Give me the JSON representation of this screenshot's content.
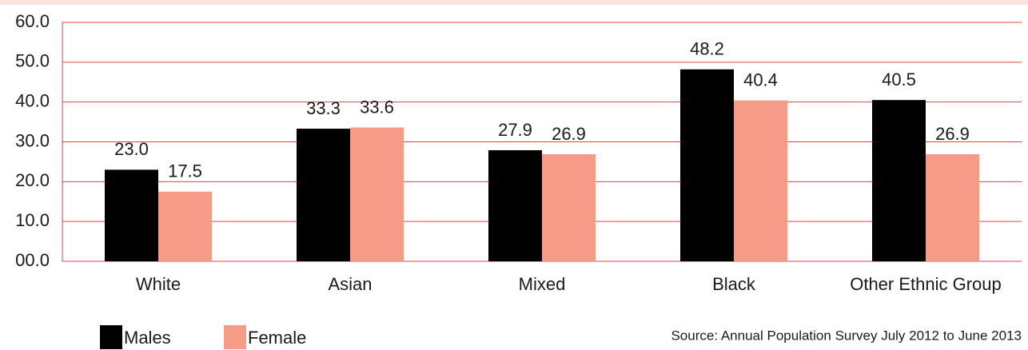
{
  "chart_data": {
    "type": "bar",
    "categories": [
      "White",
      "Asian",
      "Mixed",
      "Black",
      "Other Ethnic Group"
    ],
    "series": [
      {
        "name": "Males",
        "color": "#000000",
        "values": [
          23.0,
          33.3,
          27.9,
          48.2,
          40.5
        ],
        "value_labels": [
          "23.0",
          "33.3",
          "27.9",
          "48.2",
          "40.5"
        ]
      },
      {
        "name": "Female",
        "color": "#f59b88",
        "values": [
          17.5,
          33.6,
          26.9,
          40.4,
          26.9
        ],
        "value_labels": [
          "17.5",
          "33.6",
          "26.9",
          "40.4",
          "26.9"
        ]
      }
    ],
    "ylim": [
      0,
      60
    ],
    "yticks": [
      {
        "value": 0,
        "label": "00.0"
      },
      {
        "value": 10,
        "label": "10.0"
      },
      {
        "value": 20,
        "label": "20.0"
      },
      {
        "value": 30,
        "label": "30.0"
      },
      {
        "value": 40,
        "label": "40.0"
      },
      {
        "value": 50,
        "label": "50.0"
      },
      {
        "value": 60,
        "label": "60.0"
      }
    ],
    "grid": true,
    "legend": "bottom-left",
    "source": "Source: Annual Population Survey July 2012 to June 2013"
  }
}
